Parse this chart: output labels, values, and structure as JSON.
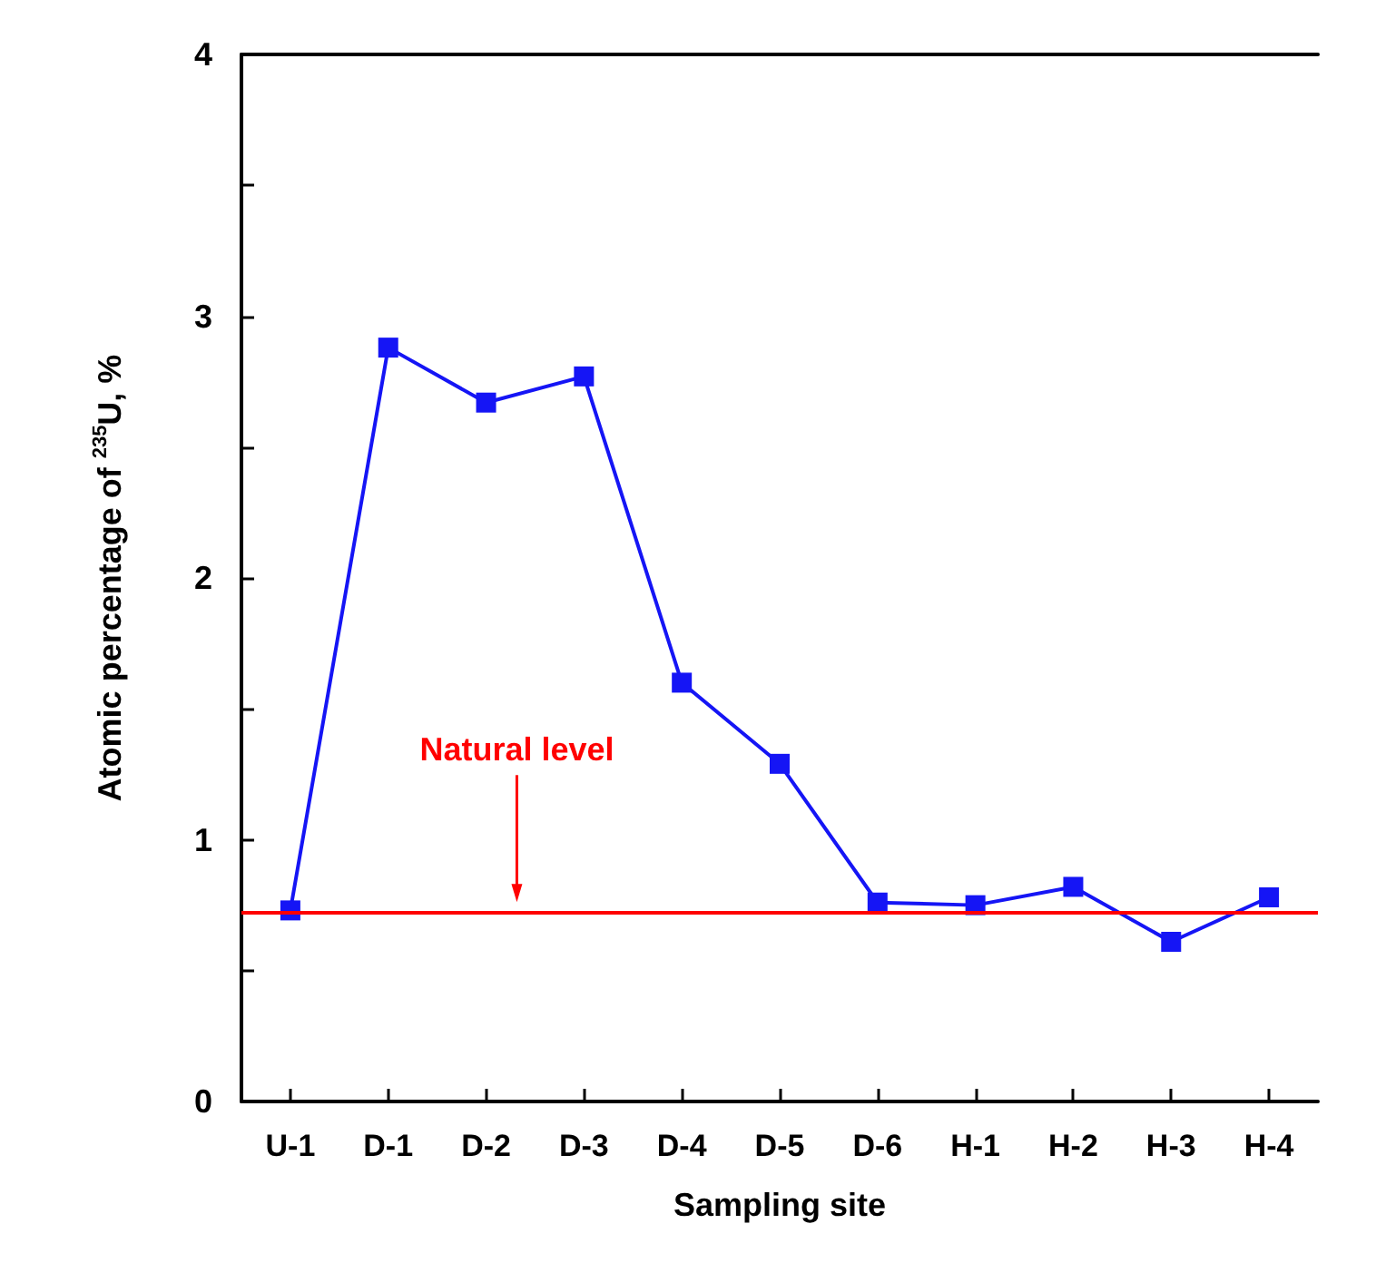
{
  "chart_data": {
    "type": "line",
    "xlabel": "Sampling site",
    "ylabel": "Atomic percentage of $^{235}$U, %",
    "categories": [
      "U-1",
      "D-1",
      "D-2",
      "D-3",
      "D-4",
      "D-5",
      "D-6",
      "H-1",
      "H-2",
      "H-3",
      "H-4"
    ],
    "series": [
      {
        "color": "#1515f5",
        "values": [
          0.73,
          2.88,
          2.67,
          2.77,
          1.6,
          1.29,
          0.76,
          0.75,
          0.82,
          0.61,
          0.78
        ]
      }
    ],
    "ylim": [
      0,
      4
    ],
    "yticks": [
      0,
      1,
      2,
      3,
      4
    ],
    "ref_lines": [
      {
        "axis": "y",
        "value": 0.72,
        "label": "Natural level",
        "color": "#ff0000"
      }
    ],
    "marker": "square",
    "grid": false
  }
}
